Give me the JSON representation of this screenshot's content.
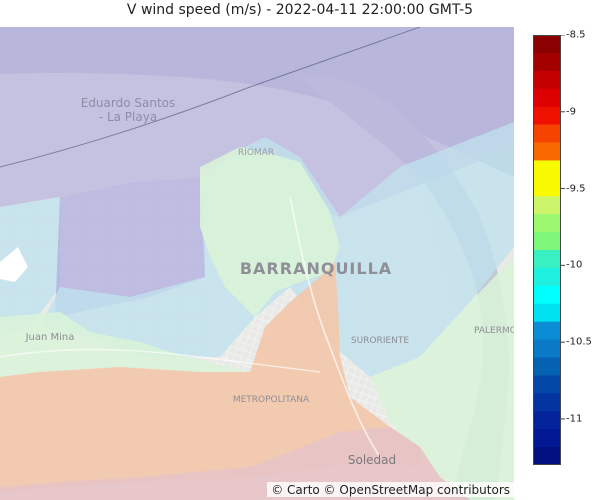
{
  "title": "V wind speed (m/s) - 2022-04-11 22:00:00 GMT-5",
  "attribution": "© Carto © OpenStreetMap contributors",
  "map_labels": {
    "eduardo_line1": "Eduardo Santos",
    "eduardo_line2": "- La Playa",
    "riomar": "RIOMAR",
    "barranquilla": "BARRANQUILLA",
    "juan_mina": "Juan Mina",
    "suroriente": "SURORIENTE",
    "metropolitana": "METROPOLITANA",
    "soledad": "Soledad",
    "palermo": "PALERMO"
  },
  "colorbar": {
    "min": -11.3,
    "max": -8.5,
    "ticks": [
      {
        "value": -8.5,
        "label": "-8.5"
      },
      {
        "value": -9,
        "label": "-9"
      },
      {
        "value": -9.5,
        "label": "-9.5"
      },
      {
        "value": -10,
        "label": "-10"
      },
      {
        "value": -10.5,
        "label": "-10.5"
      },
      {
        "value": -11,
        "label": "-11"
      }
    ],
    "colors": [
      "#8b0000",
      "#a40000",
      "#c40000",
      "#dd0000",
      "#ee1100",
      "#f64400",
      "#f86a00",
      "#f9f900",
      "#f9f900",
      "#cdf56c",
      "#9cf76f",
      "#7ef77a",
      "#38f0c1",
      "#20f0e0",
      "#00ffff",
      "#00e2f0",
      "#0b8dd6",
      "#0b7ac6",
      "#0561b2",
      "#0448a7",
      "#0334a0",
      "#02239a",
      "#021894",
      "#00107f"
    ]
  },
  "colors": {
    "land": "#e9e9e7",
    "water": "#b9bdc9",
    "purple_zone": "#b8b4df",
    "blue_zone": "#bfe1ee",
    "green_zone": "#d9f3d8",
    "orange_zone": "#f3c6a9",
    "red_zone": "#e7c3c6"
  }
}
